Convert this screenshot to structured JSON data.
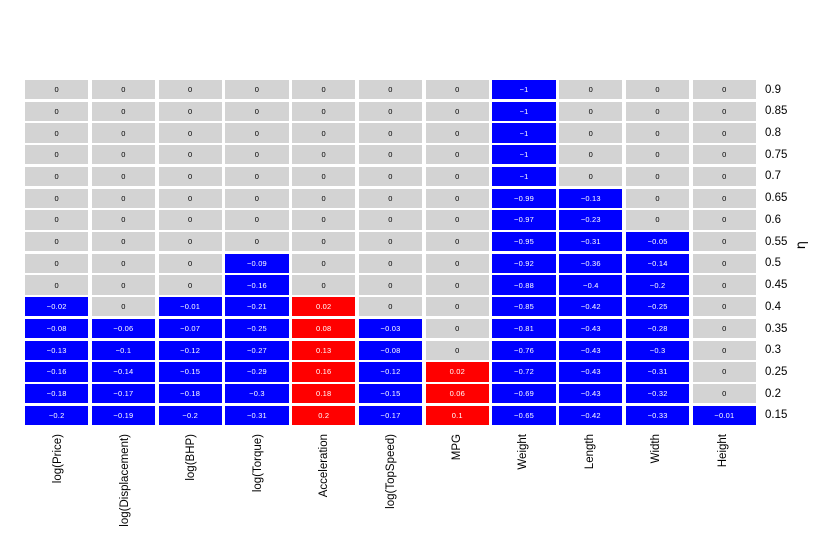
{
  "chart_data": {
    "type": "heatmap",
    "title": "",
    "xlabel": "",
    "ylabel": "η",
    "legend_position": "none",
    "grid": "white gaps between cells, no axis lines",
    "x_categories": [
      "log(Price)",
      "log(Displacement)",
      "log(BHP)",
      "log(Torque)",
      "Acceleration",
      "log(TopSpeed)",
      "MPG",
      "Weight",
      "Length",
      "Width",
      "Height"
    ],
    "y_categories": [
      "0.9",
      "0.85",
      "0.8",
      "0.75",
      "0.7",
      "0.65",
      "0.6",
      "0.55",
      "0.5",
      "0.45",
      "0.4",
      "0.35",
      "0.3",
      "0.25",
      "0.2",
      "0.15"
    ],
    "values": [
      [
        0,
        0,
        0,
        0,
        0,
        0,
        0,
        -1,
        0,
        0,
        0
      ],
      [
        0,
        0,
        0,
        0,
        0,
        0,
        0,
        -1,
        0,
        0,
        0
      ],
      [
        0,
        0,
        0,
        0,
        0,
        0,
        0,
        -1,
        0,
        0,
        0
      ],
      [
        0,
        0,
        0,
        0,
        0,
        0,
        0,
        -1,
        0,
        0,
        0
      ],
      [
        0,
        0,
        0,
        0,
        0,
        0,
        0,
        -1,
        0,
        0,
        0
      ],
      [
        0,
        0,
        0,
        0,
        0,
        0,
        0,
        -0.99,
        -0.13,
        0,
        0
      ],
      [
        0,
        0,
        0,
        0,
        0,
        0,
        0,
        -0.97,
        -0.23,
        0,
        0
      ],
      [
        0,
        0,
        0,
        0,
        0,
        0,
        0,
        -0.95,
        -0.31,
        -0.05,
        0
      ],
      [
        0,
        0,
        0,
        -0.09,
        0,
        0,
        0,
        -0.92,
        -0.36,
        -0.14,
        0
      ],
      [
        0,
        0,
        0,
        -0.16,
        0,
        0,
        0,
        -0.88,
        -0.4,
        -0.2,
        0
      ],
      [
        -0.02,
        0,
        -0.01,
        -0.21,
        0.02,
        0,
        0,
        -0.85,
        -0.42,
        -0.25,
        0
      ],
      [
        -0.08,
        -0.06,
        -0.07,
        -0.25,
        0.08,
        -0.03,
        0,
        -0.81,
        -0.43,
        -0.28,
        0
      ],
      [
        -0.13,
        -0.1,
        -0.12,
        -0.27,
        0.13,
        -0.08,
        0,
        -0.76,
        -0.43,
        -0.3,
        0
      ],
      [
        -0.16,
        -0.14,
        -0.15,
        -0.29,
        0.16,
        -0.12,
        0.02,
        -0.72,
        -0.43,
        -0.31,
        0
      ],
      [
        -0.18,
        -0.17,
        -0.18,
        -0.3,
        0.18,
        -0.15,
        0.06,
        -0.69,
        -0.43,
        -0.32,
        0
      ],
      [
        -0.2,
        -0.19,
        -0.2,
        -0.31,
        0.2,
        -0.17,
        0.1,
        -0.65,
        -0.42,
        -0.33,
        -0.01
      ]
    ],
    "colors": {
      "zero_cell": "#d3d3d3",
      "negative_cell": "#0000ff",
      "positive_cell": "#ff0000",
      "zero_text": "#000000",
      "value_text": "#ffffff",
      "background": "#ffffff"
    }
  }
}
